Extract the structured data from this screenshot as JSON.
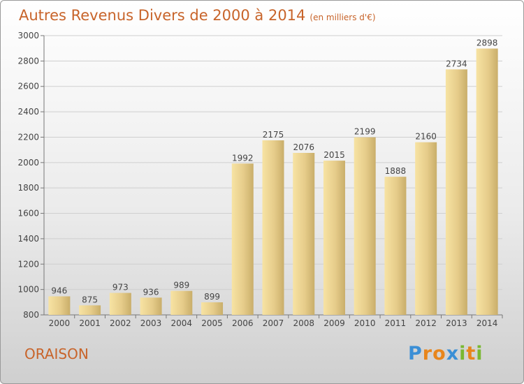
{
  "title": "Autres Revenus Divers de 2000 à 2014",
  "unit": "(en milliers d'€)",
  "commune": "ORAISON",
  "logo": {
    "letters": [
      "P",
      "r",
      "o",
      "x",
      "i",
      "t",
      "i"
    ],
    "colors": [
      "#3b8fd6",
      "#e8861c",
      "#e8861c",
      "#3b8fd6",
      "#7ab832",
      "#e8861c",
      "#7ab832"
    ]
  },
  "colors": {
    "bar_light": "#f7e3a3",
    "bar_dark": "#c9ae6a",
    "title": "#c8642a",
    "grid": "#cfcfcf"
  },
  "chart_data": {
    "type": "bar",
    "categories": [
      "2000",
      "2001",
      "2002",
      "2003",
      "2004",
      "2005",
      "2006",
      "2007",
      "2008",
      "2009",
      "2010",
      "2011",
      "2012",
      "2013",
      "2014"
    ],
    "values": [
      946,
      875,
      973,
      936,
      989,
      899,
      1992,
      2175,
      2076,
      2015,
      2199,
      1888,
      2160,
      2734,
      2898
    ],
    "ylim": [
      800,
      3000
    ],
    "yticks": [
      800,
      1000,
      1200,
      1400,
      1600,
      1800,
      2000,
      2200,
      2400,
      2600,
      2800,
      3000
    ],
    "grid": true,
    "title": "Autres Revenus Divers de 2000 à 2014",
    "xlabel": "",
    "ylabel": ""
  }
}
